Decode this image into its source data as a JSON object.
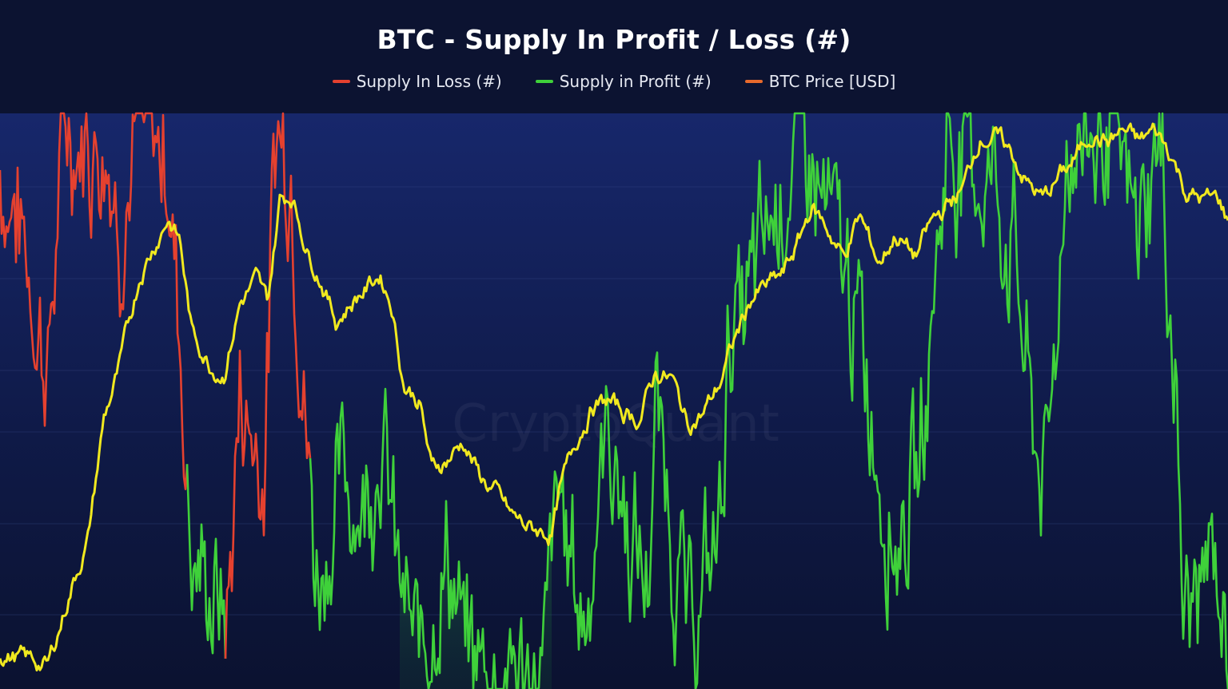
{
  "chart_data": {
    "type": "line",
    "title": "BTC - Supply In Profit / Loss (#)",
    "watermark": "CryptoQuant",
    "legend_position": "top-center",
    "grid": true,
    "series": [
      {
        "name": "Supply In Loss (#)",
        "color": "#e5412f",
        "legend_color": "#e5412f"
      },
      {
        "name": "Supply in Profit (#)",
        "color": "#3fd13a",
        "legend_color": "#3fd13a"
      },
      {
        "name": "BTC Price [USD]",
        "color": "#f1e91f",
        "legend_color": "#e86a2c"
      }
    ],
    "profit_loss_shape": [
      [
        0,
        0.9
      ],
      [
        30,
        0.78
      ],
      [
        60,
        0.56
      ],
      [
        80,
        0.97
      ],
      [
        130,
        0.96
      ],
      [
        150,
        0.84
      ],
      [
        180,
        0.98
      ],
      [
        210,
        0.92
      ],
      [
        225,
        0.62
      ],
      [
        240,
        0.22
      ],
      [
        270,
        0.16
      ],
      [
        285,
        0.13
      ],
      [
        300,
        0.52
      ],
      [
        330,
        0.38
      ],
      [
        345,
        0.98
      ],
      [
        365,
        0.92
      ],
      [
        380,
        0.52
      ],
      [
        395,
        0.2
      ],
      [
        430,
        0.36
      ],
      [
        460,
        0.34
      ],
      [
        475,
        0.48
      ],
      [
        500,
        0.17
      ],
      [
        520,
        0.05
      ],
      [
        560,
        0.24
      ],
      [
        580,
        0.07
      ],
      [
        610,
        0.04
      ],
      [
        640,
        0.02
      ],
      [
        660,
        0.02
      ],
      [
        680,
        0.01
      ],
      [
        690,
        0.22
      ],
      [
        700,
        0.32
      ],
      [
        730,
        0.12
      ],
      [
        760,
        0.46
      ],
      [
        790,
        0.25
      ],
      [
        810,
        0.18
      ],
      [
        820,
        0.48
      ],
      [
        840,
        0.3
      ],
      [
        860,
        0.09
      ],
      [
        880,
        0.17
      ],
      [
        900,
        0.28
      ],
      [
        910,
        0.6
      ],
      [
        940,
        0.67
      ],
      [
        965,
        0.82
      ],
      [
        985,
        0.89
      ],
      [
        1005,
        0.96
      ],
      [
        1030,
        0.83
      ],
      [
        1060,
        0.7
      ],
      [
        1080,
        0.58
      ],
      [
        1100,
        0.4
      ],
      [
        1120,
        0.27
      ],
      [
        1150,
        0.38
      ],
      [
        1185,
        0.97
      ],
      [
        1210,
        0.92
      ],
      [
        1240,
        0.89
      ],
      [
        1270,
        0.76
      ],
      [
        1290,
        0.46
      ],
      [
        1310,
        0.35
      ],
      [
        1335,
        0.97
      ],
      [
        1360,
        0.95
      ],
      [
        1390,
        0.97
      ],
      [
        1420,
        0.78
      ],
      [
        1450,
        0.95
      ],
      [
        1470,
        0.56
      ],
      [
        1480,
        0.12
      ],
      [
        1500,
        0.17
      ],
      [
        1520,
        0.21
      ],
      [
        1536,
        0.06
      ]
    ],
    "price_shape": [
      [
        0,
        0.06
      ],
      [
        40,
        0.05
      ],
      [
        60,
        0.04
      ],
      [
        90,
        0.18
      ],
      [
        110,
        0.26
      ],
      [
        130,
        0.47
      ],
      [
        150,
        0.56
      ],
      [
        175,
        0.72
      ],
      [
        210,
        0.82
      ],
      [
        225,
        0.78
      ],
      [
        240,
        0.62
      ],
      [
        265,
        0.56
      ],
      [
        280,
        0.55
      ],
      [
        300,
        0.67
      ],
      [
        320,
        0.71
      ],
      [
        335,
        0.67
      ],
      [
        350,
        0.85
      ],
      [
        365,
        0.86
      ],
      [
        385,
        0.76
      ],
      [
        400,
        0.72
      ],
      [
        420,
        0.64
      ],
      [
        445,
        0.68
      ],
      [
        475,
        0.72
      ],
      [
        490,
        0.67
      ],
      [
        505,
        0.53
      ],
      [
        525,
        0.5
      ],
      [
        540,
        0.38
      ],
      [
        560,
        0.4
      ],
      [
        580,
        0.43
      ],
      [
        600,
        0.37
      ],
      [
        620,
        0.34
      ],
      [
        640,
        0.3
      ],
      [
        660,
        0.28
      ],
      [
        690,
        0.27
      ],
      [
        700,
        0.34
      ],
      [
        720,
        0.43
      ],
      [
        740,
        0.49
      ],
      [
        760,
        0.5
      ],
      [
        780,
        0.48
      ],
      [
        800,
        0.47
      ],
      [
        820,
        0.55
      ],
      [
        840,
        0.54
      ],
      [
        860,
        0.46
      ],
      [
        880,
        0.48
      ],
      [
        900,
        0.53
      ],
      [
        920,
        0.61
      ],
      [
        940,
        0.68
      ],
      [
        960,
        0.7
      ],
      [
        980,
        0.72
      ],
      [
        1000,
        0.78
      ],
      [
        1015,
        0.84
      ],
      [
        1035,
        0.8
      ],
      [
        1055,
        0.75
      ],
      [
        1075,
        0.82
      ],
      [
        1100,
        0.74
      ],
      [
        1120,
        0.79
      ],
      [
        1145,
        0.75
      ],
      [
        1165,
        0.81
      ],
      [
        1185,
        0.84
      ],
      [
        1205,
        0.87
      ],
      [
        1225,
        0.96
      ],
      [
        1245,
        0.96
      ],
      [
        1265,
        0.93
      ],
      [
        1285,
        0.88
      ],
      [
        1305,
        0.85
      ],
      [
        1325,
        0.89
      ],
      [
        1345,
        0.92
      ],
      [
        1365,
        0.97
      ],
      [
        1385,
        0.95
      ],
      [
        1405,
        0.97
      ],
      [
        1425,
        0.95
      ],
      [
        1445,
        0.97
      ],
      [
        1465,
        0.93
      ],
      [
        1485,
        0.86
      ],
      [
        1505,
        0.85
      ],
      [
        1525,
        0.85
      ],
      [
        1536,
        0.81
      ]
    ]
  }
}
